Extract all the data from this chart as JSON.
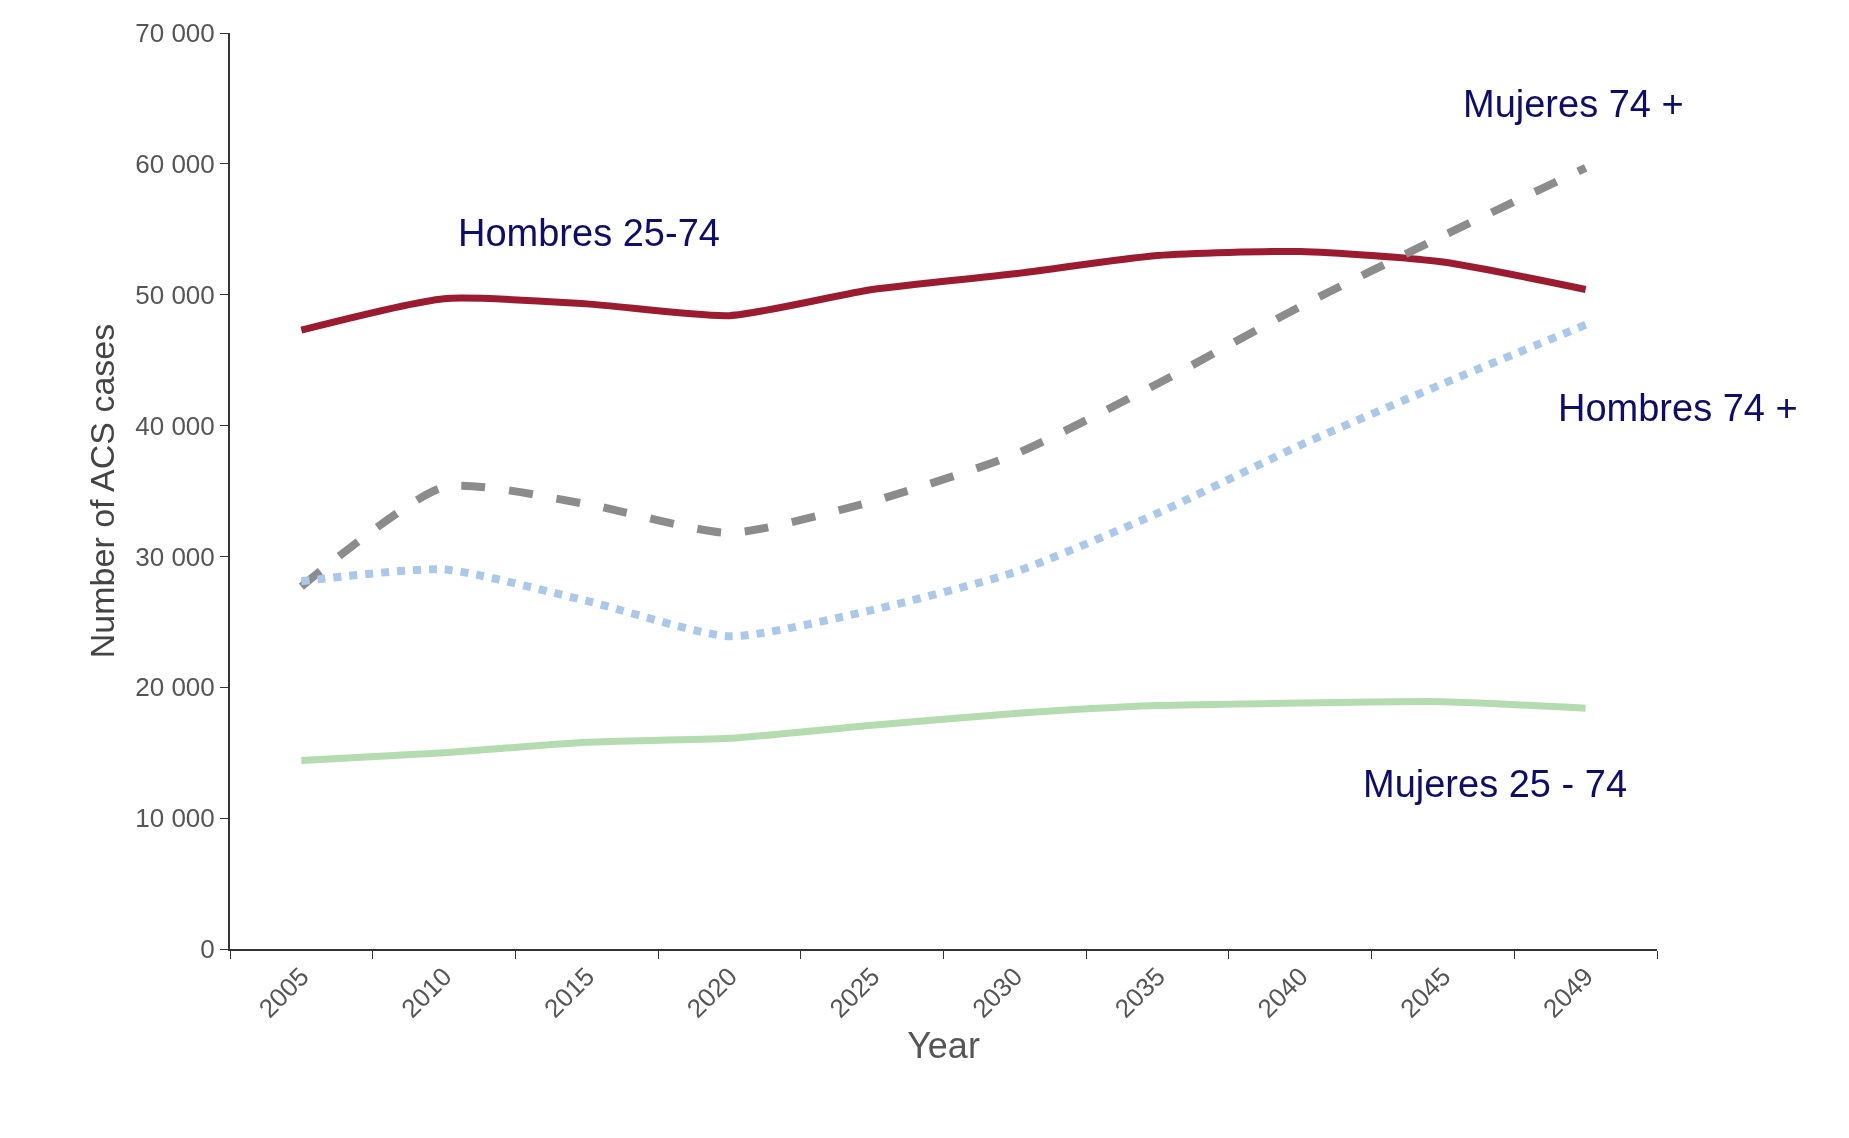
{
  "chart_data": {
    "type": "line",
    "xlabel": "Year",
    "ylabel": "Number of ACS cases",
    "categories": [
      "2005",
      "2010",
      "2015",
      "2020",
      "2025",
      "2030",
      "2035",
      "2040",
      "2045",
      "2049"
    ],
    "series": [
      {
        "name": "Hombres 25-74",
        "color": "#9b1b30",
        "line_style": "solid",
        "values": [
          47300,
          49700,
          49300,
          48400,
          50400,
          51600,
          53000,
          53300,
          52500,
          50400
        ]
      },
      {
        "name": "Mujeres 74 +",
        "color": "#8c8c8c",
        "line_style": "dashed",
        "values": [
          27700,
          35300,
          34000,
          31800,
          34200,
          37800,
          43200,
          49100,
          54500,
          59700
        ]
      },
      {
        "name": "Hombres 74 +",
        "color": "#a9c8ea",
        "line_style": "dotted",
        "values": [
          28100,
          29000,
          26600,
          23900,
          25900,
          28800,
          33300,
          38500,
          43200,
          47700
        ]
      },
      {
        "name": "Mujeres 25 - 74",
        "color": "#b5dbb0",
        "line_style": "solid",
        "values": [
          14400,
          15000,
          15800,
          16100,
          17100,
          18000,
          18600,
          18800,
          18900,
          18400
        ]
      }
    ],
    "ylim": [
      0,
      70000
    ],
    "yticks": [
      0,
      {
        "value": 10000,
        "label": "10 000"
      },
      {
        "value": 20000,
        "label": "20 000"
      },
      {
        "value": 30000,
        "label": "30 000"
      },
      {
        "value": 40000,
        "label": "40 000"
      },
      {
        "value": 50000,
        "label": "50 000"
      },
      {
        "value": 60000,
        "label": "60 000"
      },
      {
        "value": 70000,
        "label": "70 000"
      }
    ],
    "legend": false,
    "marker": "none"
  }
}
